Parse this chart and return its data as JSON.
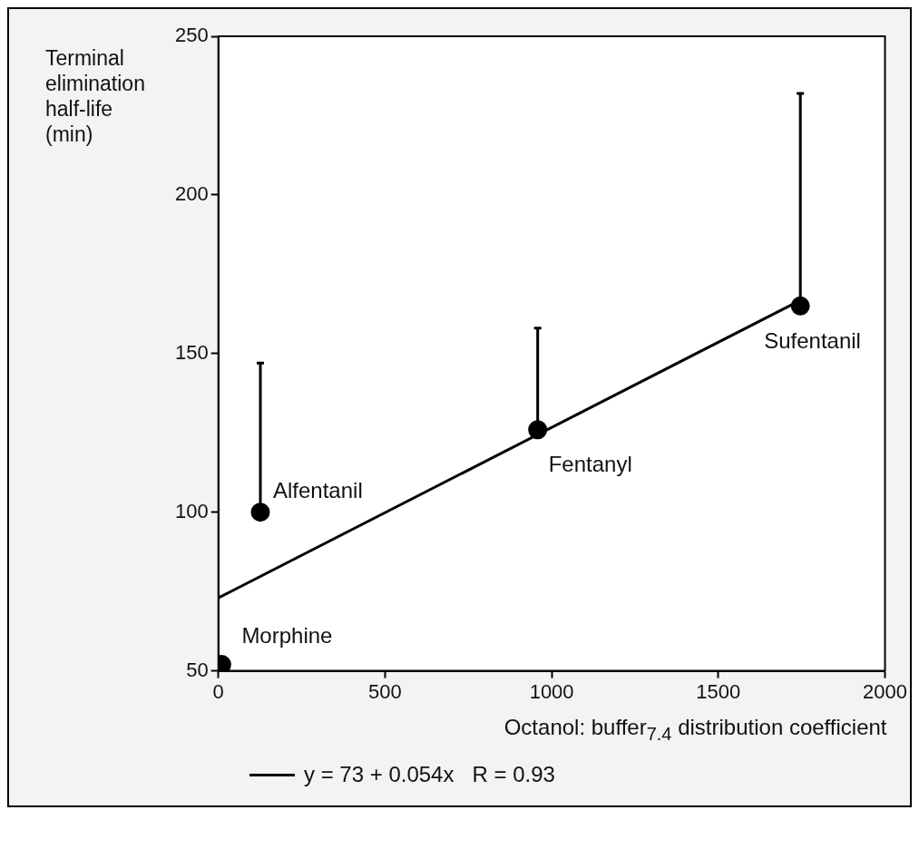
{
  "chart_data": {
    "type": "scatter",
    "xlabel": "Octanol: buffer$_{7.4}$ distribution coefficient",
    "ylabel": "Terminal elimination half-life (min)",
    "xlim": [
      0,
      2000
    ],
    "xticks": [
      0,
      500,
      1000,
      1500,
      2000
    ],
    "ylim": [
      50,
      250
    ],
    "yticks": [
      50,
      100,
      150,
      200,
      250
    ],
    "grid": false,
    "legend": "bottom",
    "marker": "circle",
    "series": [
      {
        "color": "#000000",
        "x": [
          10,
          126,
          958,
          1746
        ],
        "values": [
          52,
          100,
          126,
          165
        ],
        "errors": [
          null,
          [
            100,
            147
          ],
          [
            126,
            158
          ],
          [
            165,
            232
          ]
        ]
      },
      {
        "type": "line",
        "name": "y = 73 + 0.054x   R = 0.93",
        "color": "#000000",
        "x": [
          0,
          1750
        ],
        "values": [
          73,
          167
        ],
        "line_style": "solid",
        "marker": "none"
      }
    ],
    "annotations": [
      {
        "text": "Morphine",
        "x": 10,
        "y": 52
      },
      {
        "text": "Alfentanil",
        "x": 126,
        "y": 100
      },
      {
        "text": "Fentanyl",
        "x": 958,
        "y": 126
      },
      {
        "text": "Sufentanil",
        "x": 1746,
        "y": 165
      }
    ]
  }
}
